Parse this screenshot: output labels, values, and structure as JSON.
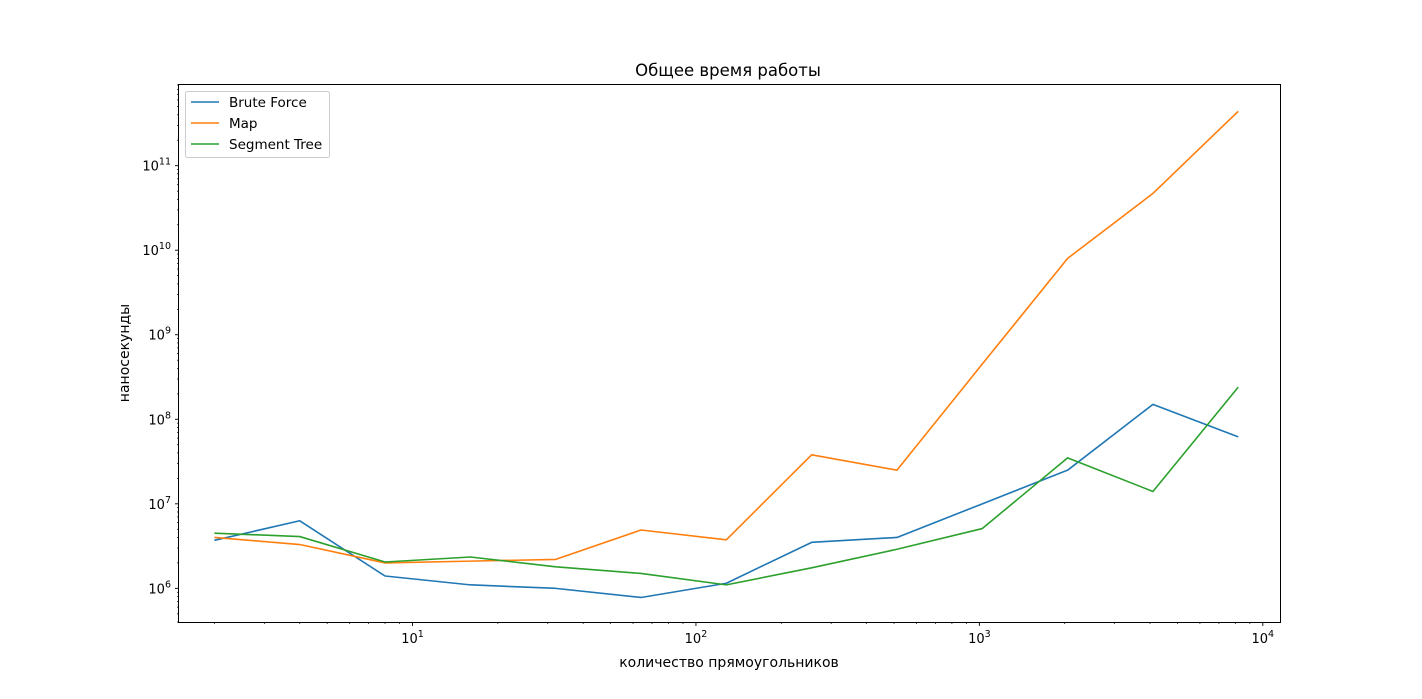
{
  "chart_data": {
    "type": "line",
    "title": "Общее время работы",
    "xlabel": "количество прямоугольников",
    "ylabel": "наносекунды",
    "xscale": "log",
    "yscale": "log",
    "xlim": [
      1.5,
      11500
    ],
    "ylim": [
      400000,
      900000000000
    ],
    "x_ticks": [
      {
        "base": "10",
        "exp": "1",
        "value": 10
      },
      {
        "base": "10",
        "exp": "2",
        "value": 100
      },
      {
        "base": "10",
        "exp": "3",
        "value": 1000
      },
      {
        "base": "10",
        "exp": "4",
        "value": 10000
      }
    ],
    "y_ticks": [
      {
        "base": "10",
        "exp": "6",
        "value": 1000000
      },
      {
        "base": "10",
        "exp": "7",
        "value": 10000000
      },
      {
        "base": "10",
        "exp": "8",
        "value": 100000000
      },
      {
        "base": "10",
        "exp": "9",
        "value": 1000000000
      },
      {
        "base": "10",
        "exp": "10",
        "value": 10000000000
      },
      {
        "base": "10",
        "exp": "11",
        "value": 100000000000
      }
    ],
    "grid": false,
    "legend": "upper-left",
    "x": [
      2,
      4,
      8,
      16,
      32,
      64,
      128,
      256,
      512,
      1024,
      2048,
      4096,
      8192
    ],
    "series": [
      {
        "name": "Brute Force",
        "color": "#1f77b4",
        "values": [
          3700000,
          6300000,
          1400000,
          1100000,
          1000000,
          780000,
          1150000,
          3500000,
          4000000,
          10000000,
          25000000,
          150000000,
          62000000
        ]
      },
      {
        "name": "Map",
        "color": "#ff7f0e",
        "values": [
          4000000,
          3300000,
          2000000,
          2100000,
          2200000,
          4900000,
          3750000,
          38000000,
          25000000,
          450000000,
          8000000000,
          47000000000,
          440000000000
        ]
      },
      {
        "name": "Segment Tree",
        "color": "#2ca02c",
        "values": [
          4500000,
          4100000,
          2050000,
          2350000,
          1800000,
          1500000,
          1100000,
          1750000,
          2900000,
          5100000,
          35000000,
          14000000,
          240000000
        ]
      }
    ]
  }
}
